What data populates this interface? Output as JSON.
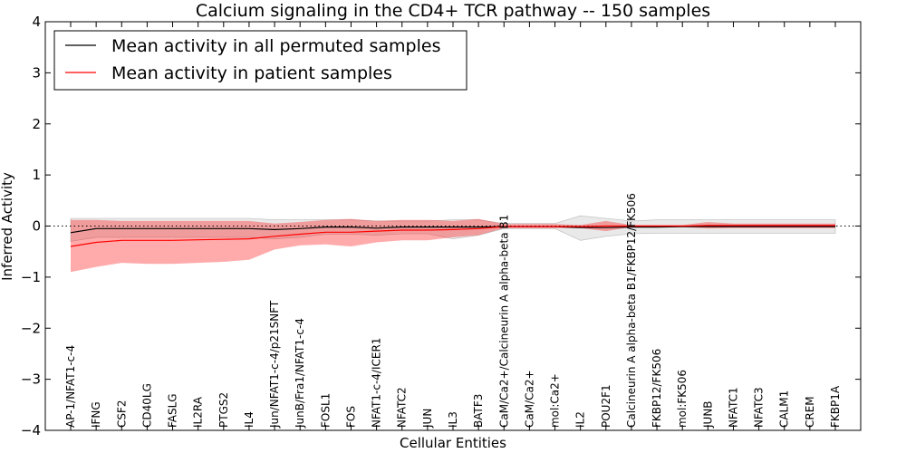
{
  "chart_data": {
    "type": "line",
    "title": "Calcium signaling in the CD4+ TCR pathway -- 150 samples",
    "xlabel": "Cellular Entities",
    "ylabel": "Inferred Activity",
    "ylim": [
      -4,
      4
    ],
    "yticks": [
      -4,
      -3,
      -2,
      -1,
      0,
      1,
      2,
      3,
      4
    ],
    "ytick_labels": [
      "−4",
      "−3",
      "−2",
      "−1",
      "0",
      "1",
      "2",
      "3",
      "4"
    ],
    "legend_position": "top-left",
    "categories": [
      "AP-1/NFAT1-c-4",
      "IFNG",
      "CSF2",
      "CD40LG",
      "FASLG",
      "IL2RA",
      "PTGS2",
      "IL4",
      "Jun/NFAT1-c-4/p21SNFT",
      "JunB/Fra1/NFAT1-c-4",
      "FOSL1",
      "FOS",
      "NFAT1-c-4/ICER1",
      "NFATC2",
      "JUN",
      "IL3",
      "BATF3",
      "CaM/Ca2+/Calcineurin A alpha-beta B1",
      "CaM/Ca2+",
      "mol:Ca2+",
      "IL2",
      "POU2F1",
      "Calcineurin A alpha-beta B1/FKBP12/FK506",
      "FKBP12/FK506",
      "mol:FK506",
      "JUNB",
      "NFATC1",
      "NFATC3",
      "CALM1",
      "CREM",
      "FKBP1A"
    ],
    "series": [
      {
        "name": "Mean activity in all permuted samples",
        "color": "#000000",
        "values": [
          -0.13,
          -0.05,
          -0.05,
          -0.05,
          -0.05,
          -0.05,
          -0.05,
          -0.05,
          -0.07,
          -0.05,
          -0.02,
          -0.02,
          -0.04,
          -0.02,
          -0.02,
          -0.02,
          -0.02,
          -0.01,
          -0.01,
          -0.01,
          -0.03,
          -0.03,
          -0.02,
          -0.02,
          -0.01,
          -0.01,
          -0.01,
          -0.01,
          -0.01,
          -0.01,
          -0.01
        ],
        "band_upper": [
          0.15,
          0.15,
          0.15,
          0.15,
          0.15,
          0.15,
          0.15,
          0.15,
          0.12,
          0.12,
          0.12,
          0.12,
          0.1,
          0.1,
          0.1,
          0.12,
          0.12,
          0.05,
          0.05,
          0.05,
          0.2,
          0.15,
          0.1,
          0.12,
          0.12,
          0.12,
          0.12,
          0.12,
          0.12,
          0.12,
          0.12
        ],
        "band_lower": [
          -0.3,
          -0.22,
          -0.22,
          -0.22,
          -0.22,
          -0.22,
          -0.22,
          -0.22,
          -0.25,
          -0.22,
          -0.16,
          -0.16,
          -0.18,
          -0.15,
          -0.15,
          -0.25,
          -0.18,
          -0.05,
          -0.05,
          -0.05,
          -0.28,
          -0.2,
          -0.15,
          -0.14,
          -0.14,
          -0.14,
          -0.14,
          -0.14,
          -0.14,
          -0.14,
          -0.14
        ]
      },
      {
        "name": "Mean activity in patient samples",
        "color": "#ff0000",
        "values": [
          -0.4,
          -0.32,
          -0.28,
          -0.28,
          -0.28,
          -0.27,
          -0.26,
          -0.25,
          -0.2,
          -0.16,
          -0.12,
          -0.12,
          -0.1,
          -0.08,
          -0.08,
          -0.07,
          -0.05,
          -0.01,
          -0.01,
          -0.01,
          -0.01,
          0.0,
          0.0,
          0.0,
          0.0,
          0.01,
          0.01,
          0.01,
          0.01,
          0.01,
          0.01
        ],
        "band_upper": [
          0.12,
          0.12,
          0.1,
          0.1,
          0.1,
          0.1,
          0.1,
          0.1,
          0.05,
          0.08,
          0.12,
          0.14,
          0.1,
          0.12,
          0.12,
          0.1,
          0.14,
          0.04,
          0.04,
          0.04,
          0.02,
          0.1,
          0.02,
          0.02,
          0.02,
          0.08,
          0.05,
          0.05,
          0.05,
          0.05,
          0.05
        ],
        "band_lower": [
          -0.9,
          -0.8,
          -0.72,
          -0.74,
          -0.74,
          -0.72,
          -0.7,
          -0.66,
          -0.46,
          -0.38,
          -0.36,
          -0.4,
          -0.32,
          -0.28,
          -0.28,
          -0.22,
          -0.18,
          -0.04,
          -0.04,
          -0.04,
          -0.04,
          -0.1,
          -0.02,
          -0.02,
          -0.02,
          -0.05,
          -0.04,
          -0.04,
          -0.04,
          -0.04,
          -0.04
        ]
      }
    ],
    "reference_line": {
      "y": 0,
      "style": "dotted"
    },
    "grid": false
  }
}
